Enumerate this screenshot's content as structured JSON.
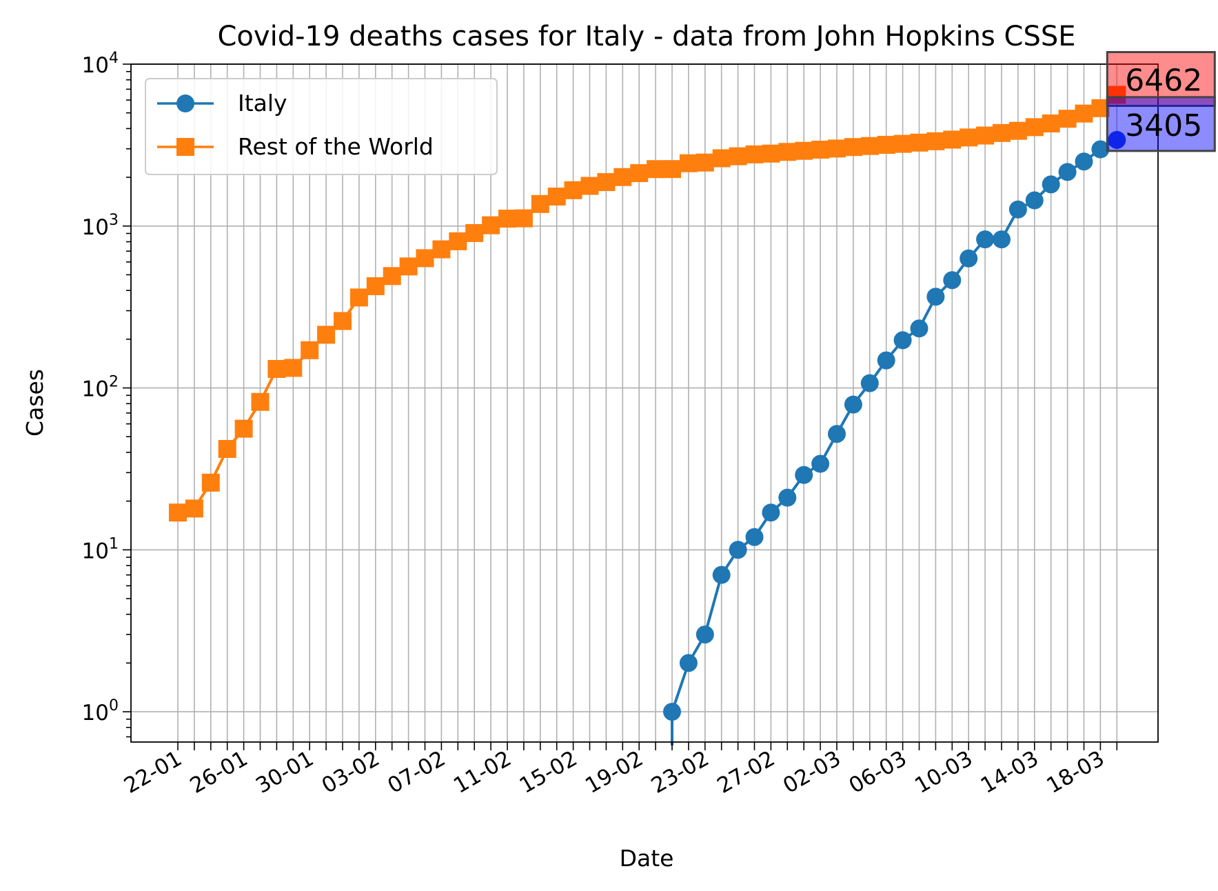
{
  "chart_data": {
    "type": "line",
    "title": "Covid-19 deaths cases for Italy - data from John Hopkins CSSE",
    "xlabel": "Date",
    "ylabel": "Cases",
    "yscale": "log",
    "ylim": [
      0.65,
      10000
    ],
    "grid": true,
    "legend_position": "top-left",
    "x_tick_labels": [
      "22-01",
      "26-01",
      "30-01",
      "03-02",
      "07-02",
      "11-02",
      "15-02",
      "19-02",
      "23-02",
      "27-02",
      "02-03",
      "06-03",
      "10-03",
      "14-03",
      "18-03"
    ],
    "y_tick_labels": [
      {
        "base": "10",
        "exp": "0",
        "value": 1
      },
      {
        "base": "10",
        "exp": "1",
        "value": 10
      },
      {
        "base": "10",
        "exp": "2",
        "value": 100
      },
      {
        "base": "10",
        "exp": "3",
        "value": 1000
      },
      {
        "base": "10",
        "exp": "4",
        "value": 10000
      }
    ],
    "x": [
      "22-01",
      "23-01",
      "24-01",
      "25-01",
      "26-01",
      "27-01",
      "28-01",
      "29-01",
      "30-01",
      "31-01",
      "01-02",
      "02-02",
      "03-02",
      "04-02",
      "05-02",
      "06-02",
      "07-02",
      "08-02",
      "09-02",
      "10-02",
      "11-02",
      "12-02",
      "13-02",
      "14-02",
      "15-02",
      "16-02",
      "17-02",
      "18-02",
      "19-02",
      "20-02",
      "21-02",
      "22-02",
      "23-02",
      "24-02",
      "25-02",
      "26-02",
      "27-02",
      "28-02",
      "29-02",
      "01-03",
      "02-03",
      "03-03",
      "04-03",
      "05-03",
      "06-03",
      "07-03",
      "08-03",
      "09-03",
      "10-03",
      "11-03",
      "12-03",
      "13-03",
      "14-03",
      "15-03",
      "16-03",
      "17-03",
      "18-03",
      "19-03"
    ],
    "series": [
      {
        "name": "Italy",
        "color": "#1f77b4",
        "marker": "circle",
        "values": [
          0,
          0,
          0,
          0,
          0,
          0,
          0,
          0,
          0,
          0,
          0,
          0,
          0,
          0,
          0,
          0,
          0,
          0,
          0,
          0,
          0,
          0,
          0,
          0,
          0,
          0,
          0,
          0,
          0,
          0,
          1,
          2,
          3,
          7,
          10,
          12,
          17,
          21,
          29,
          34,
          52,
          79,
          107,
          148,
          197,
          233,
          366,
          463,
          631,
          827,
          827,
          1266,
          1441,
          1809,
          2158,
          2503,
          2978,
          3405
        ]
      },
      {
        "name": "Rest of the World",
        "color": "#ff7f0e",
        "marker": "square",
        "values": [
          17,
          18,
          26,
          42,
          56,
          82,
          131,
          133,
          171,
          213,
          259,
          362,
          425,
          491,
          563,
          633,
          718,
          805,
          905,
          1011,
          1111,
          1116,
          1368,
          1521,
          1665,
          1770,
          1868,
          2007,
          2122,
          2247,
          2248,
          2443,
          2467,
          2622,
          2697,
          2770,
          2802,
          2870,
          2914,
          2963,
          3011,
          3076,
          3121,
          3174,
          3218,
          3275,
          3339,
          3418,
          3524,
          3622,
          3756,
          3874,
          4081,
          4300,
          4600,
          4952,
          5346,
          6462
        ]
      }
    ],
    "annotations": [
      {
        "text": "6462",
        "series": "Rest of the World",
        "box_color": "#ff0000"
      },
      {
        "text": "3405",
        "series": "Italy",
        "box_color": "#0000ff"
      }
    ]
  }
}
